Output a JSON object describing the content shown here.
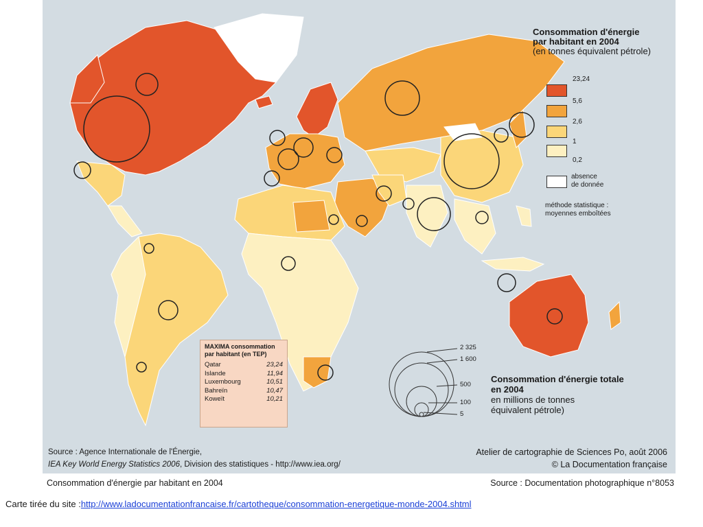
{
  "legend": {
    "title_line1": "Consommation d'énergie",
    "title_line2": "par habitant en 2004",
    "subtitle": "(en tonnes équivalent pétrole)",
    "classes": [
      {
        "label": "23,24",
        "color": "#e2552b"
      },
      {
        "label": "5,6",
        "color": "#f2a43d"
      },
      {
        "label": "2,6",
        "color": "#fbd679"
      },
      {
        "label": "1",
        "color": "#fdf0c1"
      },
      {
        "label": "0,2",
        "color": ""
      }
    ],
    "no_data_line1": "absence",
    "no_data_line2": "de donnée",
    "no_data_color": "#ffffff",
    "method_line1": "méthode statistique :",
    "method_line2": "moyennes emboîtées"
  },
  "maxima": {
    "title_line1": "MAXIMA consommation",
    "title_line2": "par habitant (en TEP)",
    "rows": [
      {
        "country": "Qatar",
        "value": "23,24"
      },
      {
        "country": "Islande",
        "value": "11,94"
      },
      {
        "country": "Luxembourg",
        "value": "10,51"
      },
      {
        "country": "Bahreïn",
        "value": "10,47"
      },
      {
        "country": "Koweït",
        "value": "10,21"
      }
    ]
  },
  "total_legend": {
    "title_line1": "Consommation d'énergie totale",
    "title_line2": "en 2004",
    "sub_line1": "en millions de tonnes",
    "sub_line2": "équivalent pétrole)",
    "scale": [
      "2 325",
      "1 600",
      "500",
      "100",
      "5"
    ]
  },
  "source_left": {
    "line1": "Source : Agence Internationale de l'Énergie,",
    "line2_italic": "IEA Key World Energy Statistics 2006",
    "line2_rest": ", Division des statistiques - http://www.iea.org/"
  },
  "source_right": {
    "line1": "Atelier de cartographie de Sciences Po, août 2006",
    "line2": "© La Documentation française"
  },
  "caption": {
    "left": "Consommation d'énergie par habitant en 2004",
    "right": "Source : Documentation photographique n°8053"
  },
  "credit": {
    "prefix": "Carte tirée du site :",
    "link": "http://www.ladocumentationfrancaise.fr/cartotheque/consommation-energetique-monde-2004.shtml"
  },
  "colors": {
    "ocean": "#d3dce2",
    "border": "#8a8a8a"
  }
}
